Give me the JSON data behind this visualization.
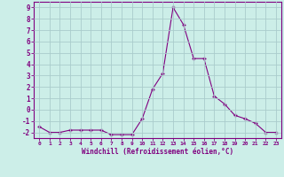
{
  "x": [
    0,
    1,
    2,
    3,
    4,
    5,
    6,
    7,
    8,
    9,
    10,
    11,
    12,
    13,
    14,
    15,
    16,
    17,
    18,
    19,
    20,
    21,
    22,
    23
  ],
  "y": [
    -1.5,
    -2.0,
    -2.0,
    -1.8,
    -1.8,
    -1.8,
    -1.8,
    -2.2,
    -2.2,
    -2.2,
    -0.8,
    1.8,
    3.2,
    9.0,
    7.5,
    4.5,
    4.5,
    1.2,
    0.5,
    -0.5,
    -0.8,
    -1.2,
    -2.0,
    -2.0
  ],
  "xlabel": "Windchill (Refroidissement éolien,°C)",
  "ylim": [
    -2.5,
    9.5
  ],
  "xlim": [
    -0.5,
    23.5
  ],
  "line_color": "#800080",
  "marker": "+",
  "bg_color": "#cceee8",
  "grid_color": "#aacccc",
  "tick_color": "#800080",
  "label_color": "#800080"
}
